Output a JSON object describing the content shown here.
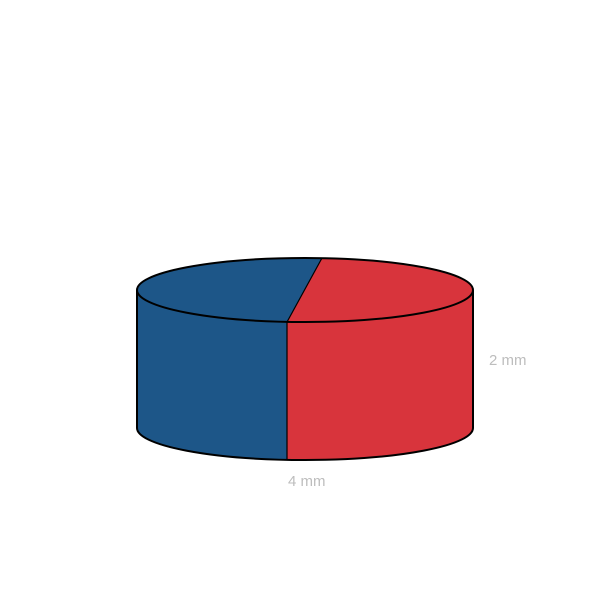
{
  "diagram": {
    "height_label": "2 mm",
    "diameter_label": "4 mm",
    "colors": {
      "north": "#1d5688",
      "south": "#d8343c",
      "outline": "#000000",
      "label": "#bdbdbd"
    }
  }
}
